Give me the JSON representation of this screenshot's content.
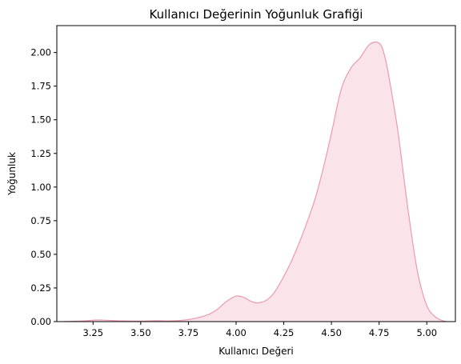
{
  "chart_data": {
    "type": "area",
    "title": "Kullanıcı Değerinin Yoğunluk Grafiği",
    "xlabel": "Kullanıcı Değeri",
    "ylabel": "Yoğunluk",
    "xlim": [
      3.06,
      5.15
    ],
    "ylim": [
      0,
      2.2
    ],
    "xticks": [
      "3.25",
      "3.50",
      "3.75",
      "4.00",
      "4.25",
      "4.50",
      "4.75",
      "5.00"
    ],
    "yticks": [
      "0.00",
      "0.25",
      "0.50",
      "0.75",
      "1.00",
      "1.25",
      "1.50",
      "1.75",
      "2.00"
    ],
    "grid": false,
    "legend": "none",
    "line_color": "#eb9aaf",
    "fill_color": "#fae4ea",
    "series": [
      {
        "x": [
          3.1,
          3.2,
          3.28,
          3.4,
          3.5,
          3.58,
          3.65,
          3.75,
          3.85,
          3.9,
          3.95,
          4.0,
          4.04,
          4.08,
          4.12,
          4.17,
          4.22,
          4.3,
          4.4,
          4.45,
          4.5,
          4.55,
          4.6,
          4.65,
          4.7,
          4.75,
          4.78,
          4.81,
          4.85,
          4.9,
          4.95,
          5.0,
          5.05,
          5.1
        ],
        "y": [
          0.0,
          0.005,
          0.012,
          0.005,
          0.004,
          0.007,
          0.005,
          0.015,
          0.05,
          0.09,
          0.15,
          0.19,
          0.18,
          0.15,
          0.14,
          0.17,
          0.26,
          0.48,
          0.85,
          1.1,
          1.4,
          1.72,
          1.88,
          1.96,
          2.06,
          2.07,
          1.97,
          1.75,
          1.4,
          0.85,
          0.38,
          0.12,
          0.03,
          0.0
        ]
      }
    ]
  }
}
